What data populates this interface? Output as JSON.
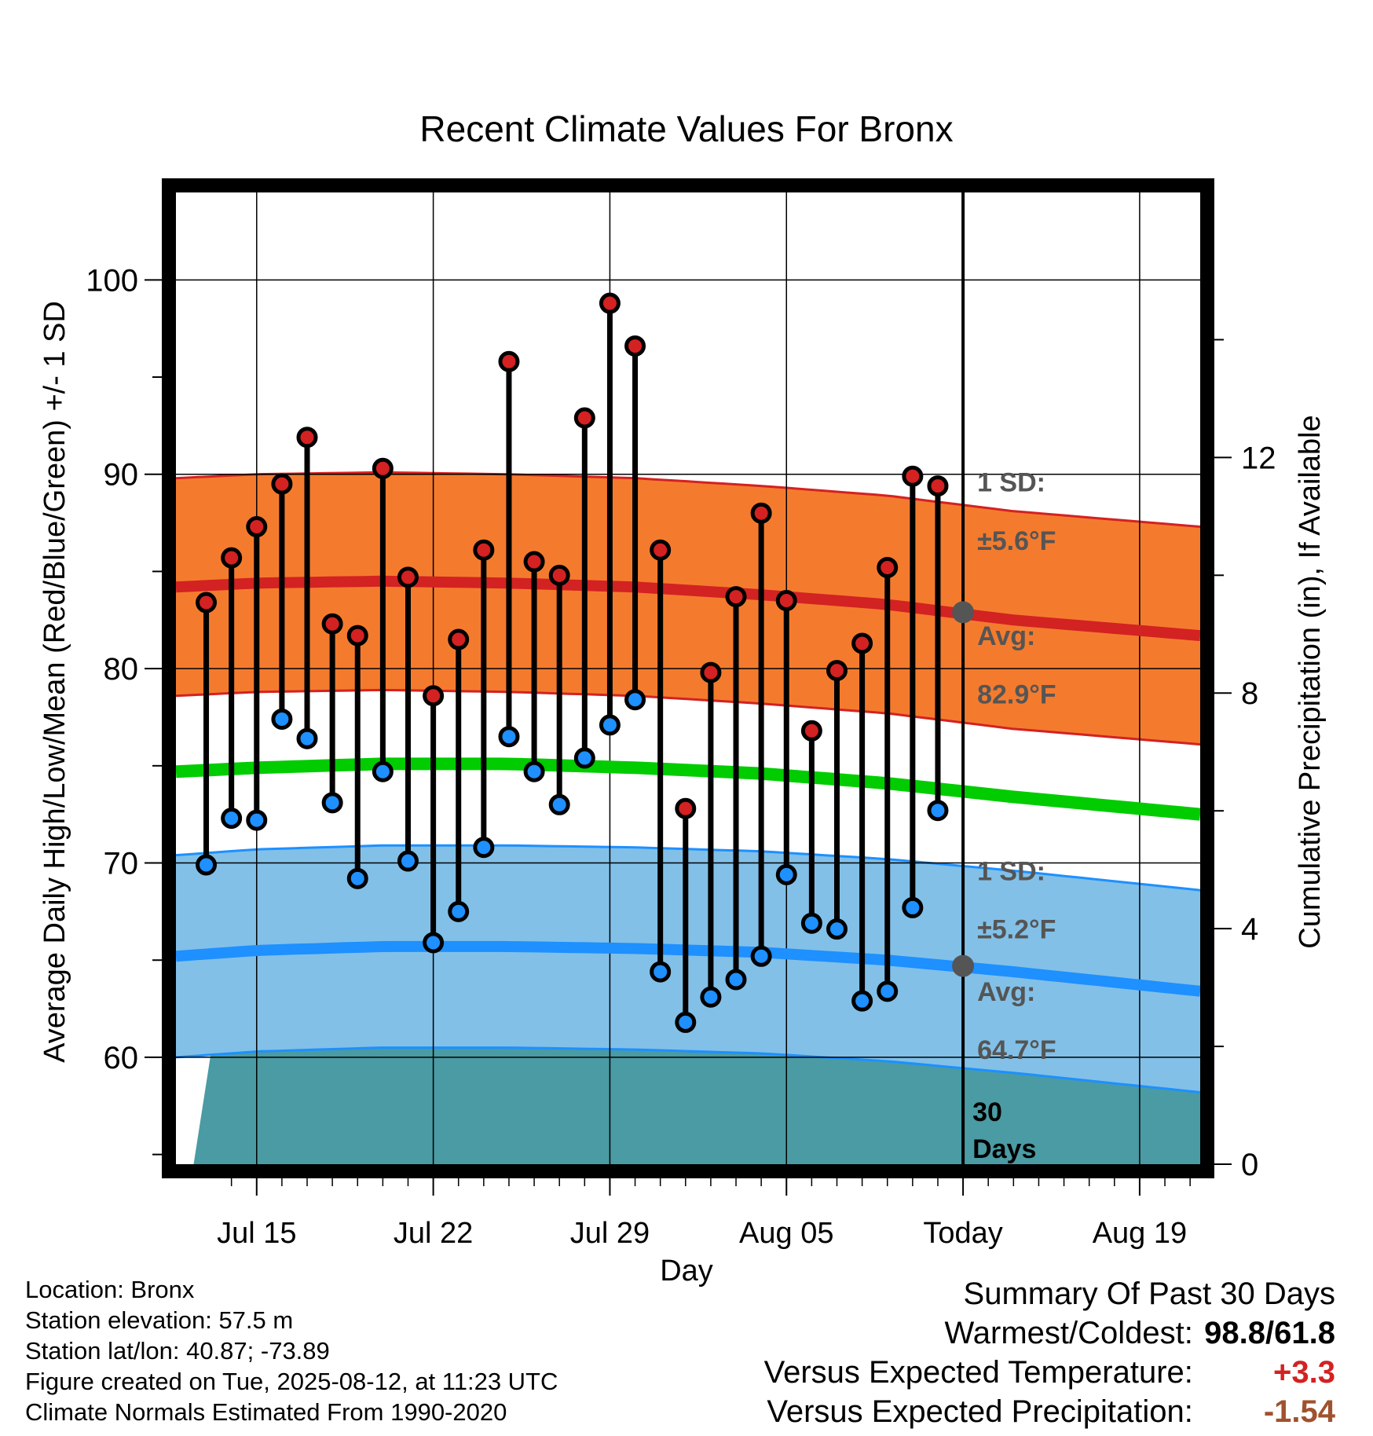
{
  "chart_data": {
    "type": "line",
    "title": "Recent Climate Values For Bronx",
    "xlabel": "Day",
    "ylabel_left": "Average Daily High/Low/Mean (Red/Blue/Green) +/- 1 SD",
    "ylabel_right": "Cumulative Precipitation (in), If Available",
    "ylim_left": [
      54.5,
      104.5
    ],
    "ylim_right": [
      0,
      16.5
    ],
    "y_ticks_left": [
      60,
      70,
      80,
      90,
      100
    ],
    "y_ticks_right": [
      0,
      4,
      8,
      12
    ],
    "x_ticks": [
      {
        "day": 15,
        "label": "Jul 15"
      },
      {
        "day": 22,
        "label": "Jul 22"
      },
      {
        "day": 29,
        "label": "Jul 29"
      },
      {
        "day": 36,
        "label": "Aug 05"
      },
      {
        "day": 43,
        "label": "Today"
      },
      {
        "day": 50,
        "label": "Aug 19"
      }
    ],
    "xlim_days": [
      11.8,
      52.4
    ],
    "today_day": 43,
    "grid": true,
    "days": [
      13,
      14,
      15,
      16,
      17,
      18,
      19,
      20,
      21,
      22,
      23,
      24,
      25,
      26,
      27,
      28,
      29,
      30,
      31,
      32,
      33,
      34,
      35,
      36,
      37,
      38,
      39,
      40,
      41,
      42
    ],
    "daily_high": [
      83.4,
      85.7,
      87.3,
      89.5,
      91.9,
      82.3,
      81.7,
      90.3,
      84.7,
      78.6,
      81.5,
      86.1,
      95.8,
      85.5,
      84.8,
      92.9,
      98.8,
      96.6,
      86.1,
      72.8,
      79.8,
      83.7,
      88.0,
      83.5,
      76.8,
      79.9,
      81.3,
      85.2,
      89.9,
      89.4
    ],
    "daily_low": [
      69.9,
      72.3,
      72.2,
      77.4,
      76.4,
      73.1,
      69.2,
      74.7,
      70.1,
      65.9,
      67.5,
      70.8,
      76.5,
      74.7,
      73.0,
      75.4,
      77.1,
      78.4,
      64.4,
      61.8,
      63.1,
      64.0,
      65.2,
      69.4,
      66.9,
      66.6,
      62.9,
      63.4,
      67.7,
      72.7
    ],
    "normal_high_days": [
      11.8,
      15,
      20,
      25,
      30,
      35,
      40,
      45,
      52.4
    ],
    "normal_high": [
      84.2,
      84.4,
      84.5,
      84.4,
      84.2,
      83.8,
      83.3,
      82.5,
      81.7
    ],
    "normal_high_sd": 5.6,
    "normal_low_days": [
      11.8,
      15,
      20,
      25,
      30,
      35,
      40,
      45,
      52.4
    ],
    "normal_low": [
      65.2,
      65.5,
      65.7,
      65.7,
      65.6,
      65.4,
      65.0,
      64.4,
      63.4
    ],
    "normal_low_sd": 5.2,
    "normal_mean_days": [
      11.8,
      15,
      20,
      25,
      30,
      35,
      40,
      45,
      52.4
    ],
    "normal_mean": [
      74.7,
      74.9,
      75.1,
      75.1,
      74.9,
      74.6,
      74.1,
      73.4,
      72.5
    ],
    "precip_days": [
      12.5,
      13.3,
      26.3,
      26.8,
      30.2,
      30.8,
      52.4
    ],
    "precip_cumulative": [
      0,
      2.2,
      2.2,
      2.3,
      2.3,
      2.5,
      2.5
    ],
    "annotations": {
      "high_sd_label": "1 SD:",
      "high_sd_value": "±5.6°F",
      "high_avg_label": "Avg:",
      "high_avg_value": "82.9°F",
      "low_sd_label": "1 SD:",
      "low_sd_value": "±5.2°F",
      "low_avg_label": "Avg:",
      "low_avg_value": "64.7°F",
      "days_number": "30",
      "days_word": "Days"
    },
    "today_high_avg": 82.9,
    "today_low_avg": 64.7,
    "colors": {
      "high_band": "#f47b2e",
      "high_line": "#d32222",
      "low_band": "#82c0e8",
      "low_line": "#1e90ff",
      "mean_line": "#00cc00",
      "precip": "#4a9ba3",
      "high_dot": "#d42121",
      "low_dot": "#1e90ff",
      "today_dot": "#555555",
      "annotation_text": "#555555"
    }
  },
  "info": {
    "location": "Location: Bronx",
    "elevation": "Station elevation: 57.5 m",
    "latlon": "Station lat/lon: 40.87; -73.89",
    "created": "Figure created on Tue, 2025-08-12, at 11:23 UTC",
    "normals": "Climate Normals Estimated From 1990-2020"
  },
  "summary": {
    "title": "Summary Of Past 30 Days",
    "warm_cold_label": "Warmest/Coldest:",
    "warm_cold_value": "98.8/61.8",
    "temp_label": "Versus Expected Temperature:",
    "temp_value": "+3.3",
    "temp_color": "#d32222",
    "precip_label": "Versus Expected Precipitation:",
    "precip_value": "-1.54",
    "precip_color": "#a0522d"
  }
}
